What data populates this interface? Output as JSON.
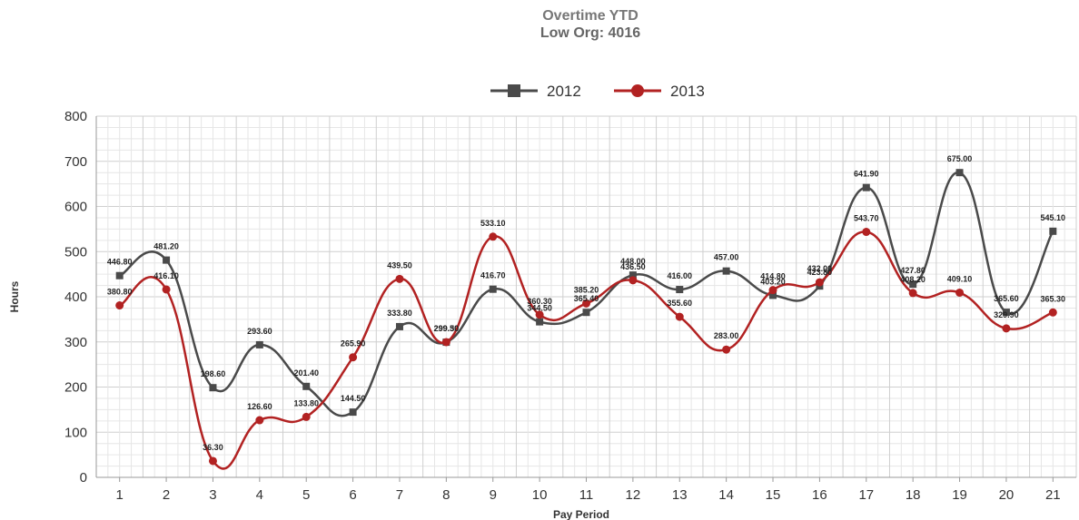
{
  "chart": {
    "title": "Overtime YTD",
    "subtitle": "Low Org: 4016"
  },
  "chart_data": {
    "type": "line",
    "title": "Overtime YTD",
    "subtitle": "Low Org: 4016",
    "xlabel": "Pay Period",
    "ylabel": "Hours",
    "categories": [
      "1",
      "2",
      "3",
      "4",
      "5",
      "6",
      "7",
      "8",
      "9",
      "10",
      "11",
      "12",
      "13",
      "14",
      "15",
      "16",
      "17",
      "18",
      "19",
      "20",
      "21"
    ],
    "ylim": [
      0,
      800
    ],
    "yticks": [
      0,
      100,
      200,
      300,
      400,
      500,
      600,
      700,
      800
    ],
    "grid": true,
    "legend": "top-center",
    "series": [
      {
        "name": "2012",
        "color": "#4a4a4a",
        "marker": "square",
        "values": [
          446.8,
          481.2,
          198.6,
          293.6,
          201.4,
          144.5,
          333.8,
          299.3,
          416.7,
          344.5,
          365.4,
          448.0,
          416.0,
          457.0,
          403.2,
          423.8,
          641.9,
          427.8,
          675.0,
          365.6,
          545.1
        ],
        "labels": [
          "446.80",
          "481.20",
          "198.60",
          "293.60",
          "201.40",
          "144.50",
          "333.80",
          "299.30",
          "416.70",
          "344.50",
          "365.40",
          "448.00",
          "416.00",
          "457.00",
          "403.20",
          "423.80",
          "641.90",
          "427.80",
          "675.00",
          "365.60",
          "545.10"
        ]
      },
      {
        "name": "2013",
        "color": "#b22222",
        "marker": "circle",
        "values": [
          380.8,
          416.1,
          36.3,
          126.6,
          133.8,
          265.9,
          439.5,
          299.5,
          533.1,
          360.3,
          385.2,
          436.5,
          355.6,
          283.0,
          414.8,
          432.0,
          543.7,
          408.2,
          409.1,
          329.9,
          365.3
        ],
        "labels": [
          "380.80",
          "416.10",
          "36.30",
          "126.60",
          "133.80",
          "265.90",
          "439.50",
          "299.50",
          "533.10",
          "360.30",
          "385.20",
          "436.50",
          "355.60",
          "283.00",
          "414.80",
          "432.00",
          "543.70",
          "408.20",
          "409.10",
          "329.90",
          "365.30"
        ]
      }
    ]
  }
}
